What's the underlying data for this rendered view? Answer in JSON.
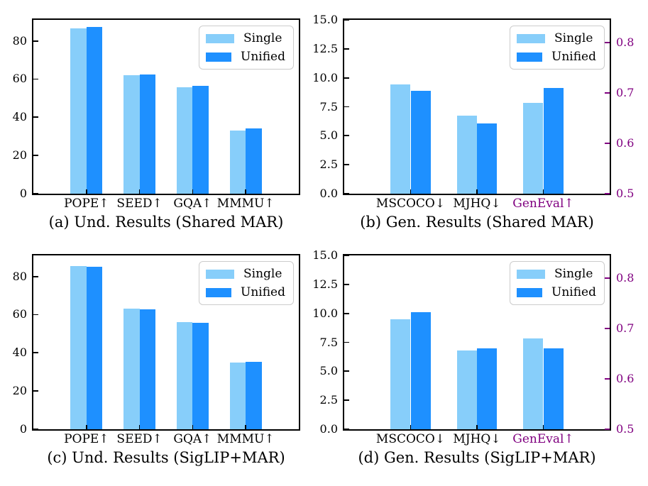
{
  "figure": {
    "background": "#ffffff"
  },
  "colors": {
    "single_bar": "#87CEFA",
    "unified_bar": "#1E90FF",
    "axis_spine": "#000000",
    "tick_label": "#000000",
    "right_axis": "#800080",
    "legend_border": "#cccccc"
  },
  "legend": {
    "items": [
      {
        "label": "Single",
        "color_key": "single_bar"
      },
      {
        "label": "Unified",
        "color_key": "unified_bar"
      }
    ],
    "position": "upper right"
  },
  "chart_data": [
    {
      "id": "a",
      "type": "bar",
      "caption": "(a) Und. Results (Shared MAR)",
      "categories": [
        "POPE↑",
        "SEED↑",
        "GQA↑",
        "MMMU↑"
      ],
      "category_colors": [
        "#000000",
        "#000000",
        "#000000",
        "#000000"
      ],
      "series": [
        {
          "name": "Single",
          "values": [
            86.6,
            62.0,
            55.6,
            33.0
          ]
        },
        {
          "name": "Unified",
          "values": [
            87.2,
            62.5,
            56.3,
            34.0
          ]
        }
      ],
      "value_axes": [
        "left",
        "left",
        "left",
        "left"
      ],
      "ylim": [
        0,
        91
      ],
      "yticks": [
        {
          "label": "0",
          "v": 0
        },
        {
          "label": "20",
          "v": 20
        },
        {
          "label": "40",
          "v": 40
        },
        {
          "label": "60",
          "v": 60
        },
        {
          "label": "80",
          "v": 80
        }
      ],
      "grid": false,
      "legend_position": "upper right"
    },
    {
      "id": "b",
      "type": "bar",
      "caption": "(b) Gen. Results (Shared MAR)",
      "categories": [
        "MSCOCO↓",
        "MJHQ↓",
        "GenEval↑"
      ],
      "category_colors": [
        "#000000",
        "#000000",
        "#800080"
      ],
      "series": [
        {
          "name": "Single",
          "values": [
            9.45,
            6.75,
            0.68
          ]
        },
        {
          "name": "Unified",
          "values": [
            8.85,
            6.05,
            0.71
          ]
        }
      ],
      "value_axes": [
        "left",
        "left",
        "right"
      ],
      "ylim": [
        0,
        15
      ],
      "yticks": [
        {
          "label": "0.0",
          "v": 0
        },
        {
          "label": "2.5",
          "v": 2.5
        },
        {
          "label": "5.0",
          "v": 5
        },
        {
          "label": "7.5",
          "v": 7.5
        },
        {
          "label": "10.0",
          "v": 10
        },
        {
          "label": "12.5",
          "v": 12.5
        },
        {
          "label": "15.0",
          "v": 15
        }
      ],
      "right_ylim": [
        0.5,
        0.845
      ],
      "right_yticks": [
        {
          "label": "0.5",
          "v": 0.5
        },
        {
          "label": "0.6",
          "v": 0.6
        },
        {
          "label": "0.7",
          "v": 0.7
        },
        {
          "label": "0.8",
          "v": 0.8
        }
      ],
      "grid": false,
      "legend_position": "upper right"
    },
    {
      "id": "c",
      "type": "bar",
      "caption": "(c) Und. Results (SigLIP+MAR)",
      "categories": [
        "POPE↑",
        "SEED↑",
        "GQA↑",
        "MMMU↑"
      ],
      "category_colors": [
        "#000000",
        "#000000",
        "#000000",
        "#000000"
      ],
      "series": [
        {
          "name": "Single",
          "values": [
            85.5,
            63.3,
            56.2,
            34.9
          ]
        },
        {
          "name": "Unified",
          "values": [
            85.0,
            62.6,
            55.7,
            35.2
          ]
        }
      ],
      "value_axes": [
        "left",
        "left",
        "left",
        "left"
      ],
      "ylim": [
        0,
        91
      ],
      "yticks": [
        {
          "label": "0",
          "v": 0
        },
        {
          "label": "20",
          "v": 20
        },
        {
          "label": "40",
          "v": 40
        },
        {
          "label": "60",
          "v": 60
        },
        {
          "label": "80",
          "v": 80
        }
      ],
      "grid": false,
      "legend_position": "upper right"
    },
    {
      "id": "d",
      "type": "bar",
      "caption": "(d) Gen. Results (SigLIP+MAR)",
      "categories": [
        "MSCOCO↓",
        "MJHQ↓",
        "GenEval↑"
      ],
      "category_colors": [
        "#000000",
        "#000000",
        "#800080"
      ],
      "series": [
        {
          "name": "Single",
          "values": [
            9.5,
            6.8,
            0.68
          ]
        },
        {
          "name": "Unified",
          "values": [
            10.1,
            6.95,
            0.66
          ]
        }
      ],
      "value_axes": [
        "left",
        "left",
        "right"
      ],
      "ylim": [
        0,
        15
      ],
      "yticks": [
        {
          "label": "0.0",
          "v": 0
        },
        {
          "label": "2.5",
          "v": 2.5
        },
        {
          "label": "5.0",
          "v": 5
        },
        {
          "label": "7.5",
          "v": 7.5
        },
        {
          "label": "10.0",
          "v": 10
        },
        {
          "label": "12.5",
          "v": 12.5
        },
        {
          "label": "15.0",
          "v": 15
        }
      ],
      "right_ylim": [
        0.5,
        0.845
      ],
      "right_yticks": [
        {
          "label": "0.5",
          "v": 0.5
        },
        {
          "label": "0.6",
          "v": 0.6
        },
        {
          "label": "0.7",
          "v": 0.7
        },
        {
          "label": "0.8",
          "v": 0.8
        }
      ],
      "grid": false,
      "legend_position": "upper right"
    }
  ]
}
